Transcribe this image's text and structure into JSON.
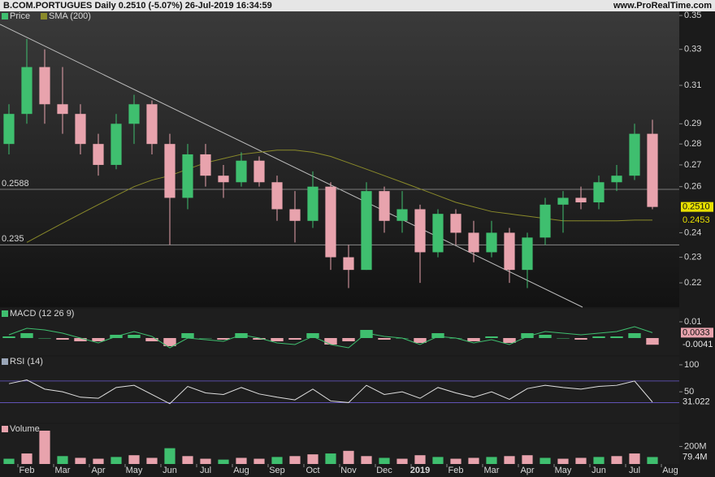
{
  "chart_data": [
    {
      "type": "candlestick",
      "title": "B.COM.PORTUGUES Daily 0.2510 (-5.07%) 26-Jul-2019 16:34:59",
      "source": "www.ProRealTime.com",
      "legend": [
        "Price",
        "SMA (200)"
      ],
      "categories": [
        null,
        "Feb",
        null,
        "Mar",
        null,
        "Apr",
        null,
        "May",
        null,
        "Jun",
        null,
        "Jul",
        null,
        "Aug",
        null,
        "Sep",
        null,
        "Oct",
        null,
        "Nov",
        null,
        "Dec",
        null,
        "2019",
        null,
        "Feb",
        null,
        "Mar",
        null,
        "Apr",
        null,
        "May",
        null,
        "Jun",
        null,
        "Jul",
        null,
        "Aug"
      ],
      "open": [
        0.28,
        0.295,
        0.32,
        0.3,
        0.295,
        0.28,
        0.27,
        0.29,
        0.3,
        0.28,
        0.255,
        0.275,
        0.265,
        0.262,
        0.272,
        0.262,
        0.25,
        0.245,
        0.26,
        0.23,
        0.225,
        0.258,
        0.245,
        0.25,
        0.232,
        0.248,
        0.24,
        0.232,
        0.24,
        0.225,
        0.238,
        0.252,
        0.255,
        0.253,
        0.262,
        0.265,
        0.285,
        null
      ],
      "high": [
        0.3,
        0.336,
        0.33,
        0.32,
        0.3,
        0.285,
        0.295,
        0.305,
        0.302,
        0.285,
        0.28,
        0.28,
        0.27,
        0.276,
        0.274,
        0.265,
        0.258,
        0.267,
        0.262,
        0.235,
        0.262,
        0.26,
        0.258,
        0.252,
        0.25,
        0.25,
        0.245,
        0.245,
        0.242,
        0.24,
        0.255,
        0.258,
        0.26,
        0.265,
        0.27,
        0.29,
        0.292,
        null
      ],
      "low": [
        0.275,
        0.29,
        0.29,
        0.285,
        0.275,
        0.265,
        0.268,
        0.28,
        0.275,
        0.235,
        0.25,
        0.26,
        0.255,
        0.26,
        0.26,
        0.245,
        0.236,
        0.242,
        0.225,
        0.218,
        0.225,
        0.24,
        0.24,
        0.22,
        0.23,
        0.235,
        0.228,
        0.23,
        0.22,
        0.218,
        0.235,
        0.24,
        0.25,
        0.25,
        0.258,
        0.263,
        0.25,
        null
      ],
      "close": [
        0.295,
        0.32,
        0.3,
        0.295,
        0.28,
        0.27,
        0.29,
        0.3,
        0.28,
        0.255,
        0.275,
        0.265,
        0.262,
        0.272,
        0.262,
        0.25,
        0.245,
        0.26,
        0.23,
        0.225,
        0.258,
        0.245,
        0.25,
        0.232,
        0.248,
        0.24,
        0.232,
        0.24,
        0.225,
        0.238,
        0.252,
        0.255,
        0.253,
        0.262,
        0.265,
        0.285,
        0.251,
        null
      ],
      "up_color": "#3fbf6f",
      "down_color": "#e8a3ad",
      "sma": {
        "name": "SMA (200)",
        "color": "#8a8a2a",
        "values": [
          null,
          0.236,
          0.24,
          0.244,
          0.248,
          0.252,
          0.256,
          0.26,
          0.263,
          0.265,
          0.268,
          0.271,
          0.273,
          0.275,
          0.276,
          0.277,
          0.277,
          0.276,
          0.274,
          0.271,
          0.268,
          0.265,
          0.262,
          0.259,
          0.256,
          0.253,
          0.251,
          0.249,
          0.248,
          0.247,
          0.246,
          0.245,
          0.245,
          0.245,
          0.245,
          0.2453,
          0.2453,
          null
        ]
      },
      "hlines": [
        0.2588,
        0.235
      ],
      "last_price": {
        "value": 0.251,
        "label": "0.2510"
      },
      "last_sma": 0.2453,
      "log": true,
      "ylim": [
        0.2109,
        0.3525
      ],
      "yticks": [
        0.35,
        0.33,
        0.31,
        0.29,
        0.28,
        0.27,
        0.26,
        0.24,
        0.23,
        0.22
      ]
    },
    {
      "type": "macd",
      "title": "MACD (12 26 9)",
      "macd": {
        "color": "#3fbf6f",
        "values": [
          0.002,
          0.006,
          0.005,
          0.003,
          0.0,
          -0.003,
          0.001,
          0.004,
          0.001,
          -0.006,
          0.0,
          -0.001,
          -0.002,
          0.002,
          0.0,
          -0.003,
          -0.004,
          0.001,
          -0.004,
          -0.006,
          0.003,
          0.001,
          0.0,
          -0.004,
          0.001,
          0.0,
          -0.003,
          -0.001,
          -0.004,
          0.001,
          0.004,
          0.003,
          0.002,
          0.003,
          0.004,
          0.007,
          0.0033,
          null
        ]
      },
      "histogram": {
        "up_color": "#3fbf6f",
        "down_color": "#e8a3ad",
        "values": [
          0.001,
          0.003,
          0.0,
          -0.001,
          -0.002,
          -0.002,
          0.002,
          0.002,
          -0.002,
          -0.005,
          0.003,
          0.0,
          -0.001,
          0.003,
          -0.001,
          -0.002,
          -0.001,
          0.003,
          -0.004,
          -0.002,
          0.005,
          -0.001,
          0.0,
          -0.003,
          0.003,
          0.0,
          -0.002,
          0.001,
          -0.003,
          0.003,
          0.002,
          0.0,
          -0.001,
          0.001,
          0.001,
          0.003,
          -0.0041,
          null
        ]
      },
      "ylim": [
        -0.0105,
        0.018
      ],
      "yticks": [
        0.01
      ],
      "badges": [
        0.0033,
        -0.0041
      ]
    },
    {
      "type": "line",
      "title": "RSI (14)",
      "color": "#e0e0e0",
      "values": [
        65,
        72,
        55,
        50,
        40,
        38,
        58,
        62,
        45,
        28,
        60,
        48,
        45,
        58,
        46,
        40,
        35,
        55,
        33,
        30,
        62,
        45,
        50,
        38,
        58,
        48,
        40,
        50,
        36,
        56,
        62,
        58,
        55,
        60,
        62,
        70,
        31.022,
        null
      ],
      "levels": [
        70,
        30
      ],
      "ylim": [
        -7,
        115
      ],
      "yticks": [
        100,
        50
      ],
      "badge": 31.022
    },
    {
      "type": "bar",
      "title": "Volume",
      "color": "#e8a3ad",
      "values": [
        60000000,
        120000000,
        380000000,
        90000000,
        70000000,
        60000000,
        80000000,
        100000000,
        70000000,
        180000000,
        90000000,
        60000000,
        50000000,
        70000000,
        60000000,
        80000000,
        90000000,
        110000000,
        120000000,
        150000000,
        90000000,
        70000000,
        60000000,
        100000000,
        80000000,
        60000000,
        70000000,
        80000000,
        90000000,
        100000000,
        70000000,
        60000000,
        70000000,
        80000000,
        90000000,
        120000000,
        79400000,
        null
      ],
      "ylim": [
        0,
        454000000
      ],
      "yticks": [
        {
          "value": 200000000,
          "label": "200M"
        }
      ],
      "badge": {
        "value": 79400000,
        "label": "79.4M"
      }
    }
  ]
}
